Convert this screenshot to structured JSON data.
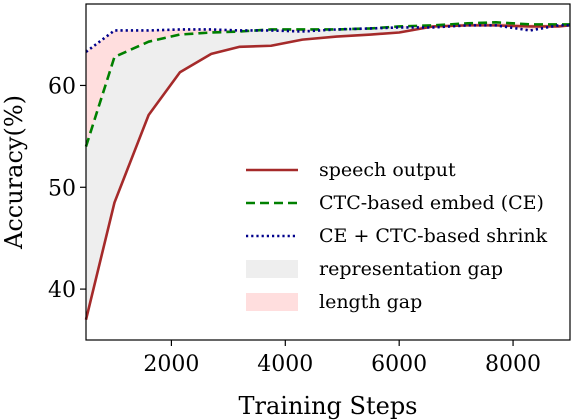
{
  "chart_data": {
    "type": "line",
    "xlabel": "Training Steps",
    "ylabel": "Accuracy(%)",
    "xlim": [
      500,
      9000
    ],
    "ylim": [
      35,
      68
    ],
    "xticks": [
      2000,
      4000,
      6000,
      8000
    ],
    "yticks": [
      40,
      50,
      60
    ],
    "grid": false,
    "legend_position": "lower-right",
    "series": [
      {
        "name": "speech output",
        "color": "#a52a2a",
        "style": "solid",
        "x": [
          500,
          1000,
          1600,
          2150,
          2700,
          3200,
          3750,
          4300,
          4900,
          5500,
          6000,
          6600,
          7200,
          7700,
          8300,
          8800,
          9000
        ],
        "values": [
          37.0,
          48.5,
          57.1,
          61.3,
          63.1,
          63.8,
          63.9,
          64.5,
          64.8,
          65.0,
          65.2,
          65.8,
          65.9,
          65.9,
          65.8,
          65.8,
          65.9
        ]
      },
      {
        "name": "CTC-based embed (CE)",
        "color": "#008000",
        "style": "dashed",
        "x": [
          500,
          1000,
          1600,
          2150,
          2700,
          3200,
          3750,
          4300,
          4900,
          5500,
          6000,
          6600,
          7200,
          7700,
          8300,
          8800,
          9000
        ],
        "values": [
          54.0,
          62.8,
          64.3,
          65.0,
          65.2,
          65.3,
          65.5,
          65.5,
          65.5,
          65.6,
          65.8,
          65.9,
          66.1,
          66.2,
          66.0,
          66.0,
          66.0
        ]
      },
      {
        "name": "CE + CTC-based shrink",
        "color": "#00008b",
        "style": "dotted",
        "x": [
          500,
          1000,
          1600,
          2150,
          2700,
          3200,
          3750,
          4300,
          4900,
          5500,
          6000,
          6600,
          7200,
          7700,
          8300,
          8800,
          9000
        ],
        "values": [
          63.3,
          65.4,
          65.4,
          65.5,
          65.5,
          65.4,
          65.4,
          65.3,
          65.5,
          65.6,
          65.7,
          65.7,
          65.9,
          65.9,
          65.4,
          65.9,
          65.9
        ]
      }
    ],
    "fills": [
      {
        "name": "representation gap",
        "between": [
          "speech output",
          "CTC-based embed (CE)"
        ],
        "color": "#eeeeee"
      },
      {
        "name": "length gap",
        "between": [
          "CTC-based embed (CE)",
          "CE + CTC-based shrink"
        ],
        "color": "#ffdede"
      }
    ]
  }
}
